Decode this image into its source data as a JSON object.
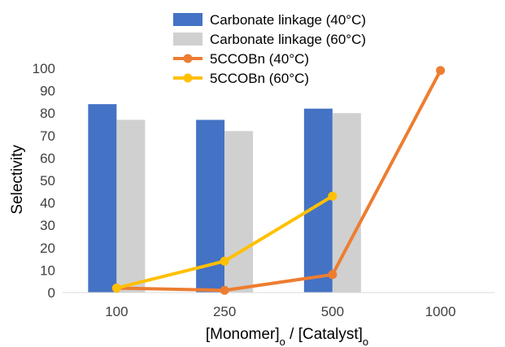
{
  "chart_data": {
    "type": "bar",
    "categories": [
      "100",
      "250",
      "500",
      "1000"
    ],
    "ylabel": "Selectivity",
    "xlabel": {
      "part1": "[Monomer]",
      "sub1": "o",
      "part2": " / [Catalyst]",
      "sub2": "o"
    },
    "ylim": [
      0,
      100
    ],
    "yticks": [
      0,
      10,
      20,
      30,
      40,
      50,
      60,
      70,
      80,
      90,
      100
    ],
    "grid": false,
    "legend_position": "top",
    "bar_series": [
      {
        "name": "Carbonate linkage (40°C)",
        "color": "#4472C4",
        "values": [
          84,
          77,
          82,
          null
        ]
      },
      {
        "name": "Carbonate linkage (60°C)",
        "color": "#D0D0D0",
        "values": [
          77,
          72,
          80,
          null
        ]
      }
    ],
    "line_series": [
      {
        "name": "5CCOBn (40°C)",
        "color": "#ED7D31",
        "values": [
          2,
          1,
          8,
          99
        ]
      },
      {
        "name": "5CCOBn (60°C)",
        "color": "#FFC000",
        "values": [
          2,
          14,
          43,
          null
        ]
      }
    ]
  }
}
